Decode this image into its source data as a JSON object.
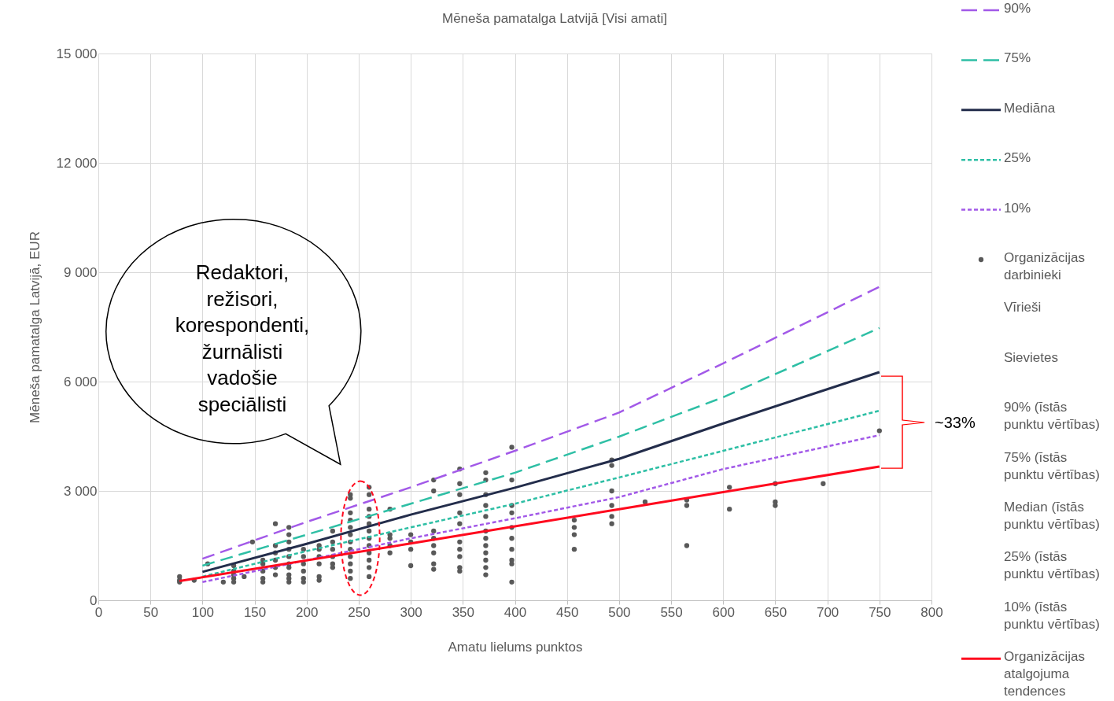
{
  "chart_data": {
    "type": "line",
    "title": "Mēneša pamatalga Latvijā [Visi amati]",
    "xlabel": "Amatu lielums punktos",
    "ylabel": "Mēneša pamatalga Latvijā, EUR",
    "xlim": [
      0,
      800
    ],
    "xticks": [
      0,
      50,
      100,
      150,
      200,
      250,
      300,
      350,
      400,
      450,
      500,
      550,
      600,
      650,
      700,
      750,
      800
    ],
    "ylim": [
      0,
      15000
    ],
    "yticks": [
      0,
      {
        "value": 3000,
        "label": "3 000"
      },
      {
        "value": 6000,
        "label": "6 000"
      },
      {
        "value": 9000,
        "label": "9 000"
      },
      {
        "value": 12000,
        "label": "12 000"
      },
      {
        "value": 15000,
        "label": "15 000"
      }
    ],
    "grid": true,
    "legend": "right",
    "annotations": [
      "Redaktori, režisori, korespondenti, žurnālisti vadošie speciālisti",
      "~33%"
    ],
    "series": [
      {
        "name": "90%",
        "color": "#a259e8",
        "line_style": "dashed",
        "x": [
          100,
          200,
          300,
          400,
          500,
          600,
          750
        ],
        "values": [
          1140,
          2150,
          3100,
          4100,
          5150,
          6500,
          8600
        ]
      },
      {
        "name": "75%",
        "color": "#2ebfa5",
        "line_style": "dashed",
        "x": [
          100,
          200,
          300,
          400,
          500,
          600,
          750
        ],
        "values": [
          950,
          1800,
          2650,
          3500,
          4490,
          5570,
          7470
        ]
      },
      {
        "name": "Mediāna",
        "color": "#232d4b",
        "line_style": "solid",
        "x": [
          100,
          200,
          300,
          400,
          500,
          600,
          750
        ],
        "values": [
          780,
          1550,
          2350,
          3090,
          3880,
          4850,
          6260
        ]
      },
      {
        "name": "25%",
        "color": "#2ebfa5",
        "line_style": "dotted",
        "x": [
          100,
          200,
          300,
          400,
          500,
          600,
          750
        ],
        "values": [
          650,
          1350,
          2000,
          2650,
          3370,
          4100,
          5200
        ]
      },
      {
        "name": "10%",
        "color": "#a259e8",
        "line_style": "dotted",
        "x": [
          100,
          200,
          300,
          400,
          500,
          600,
          750
        ],
        "values": [
          500,
          1100,
          1700,
          2250,
          2830,
          3600,
          4530
        ]
      },
      {
        "name": "Organizācijas darbinieki",
        "type": "scatter",
        "marker": "circle",
        "color": "#595959",
        "x": [
          78,
          78,
          78,
          92,
          105,
          120,
          130,
          130,
          130,
          130,
          130,
          140,
          148,
          158,
          158,
          158,
          158,
          158,
          170,
          170,
          170,
          170,
          170,
          170,
          183,
          183,
          183,
          183,
          183,
          183,
          183,
          183,
          183,
          183,
          197,
          197,
          197,
          197,
          197,
          197,
          212,
          212,
          212,
          212,
          212,
          212,
          225,
          225,
          225,
          225,
          225,
          225,
          242,
          242,
          242,
          242,
          242,
          242,
          242,
          242,
          242,
          242,
          242,
          242,
          260,
          260,
          260,
          260,
          260,
          260,
          260,
          260,
          260,
          260,
          260,
          260,
          280,
          280,
          280,
          280,
          280,
          300,
          300,
          300,
          300,
          322,
          322,
          322,
          322,
          322,
          322,
          322,
          322,
          347,
          347,
          347,
          347,
          347,
          347,
          347,
          347,
          347,
          347,
          372,
          372,
          372,
          372,
          372,
          372,
          372,
          372,
          372,
          372,
          372,
          372,
          397,
          397,
          397,
          397,
          397,
          397,
          397,
          397,
          397,
          397,
          457,
          457,
          457,
          457,
          493,
          493,
          493,
          493,
          493,
          493,
          525,
          565,
          565,
          565,
          606,
          606,
          650,
          650,
          650,
          696,
          750
        ],
        "values": [
          500,
          550,
          650,
          550,
          1000,
          500,
          500,
          600,
          700,
          800,
          950,
          650,
          1600,
          500,
          600,
          800,
          1000,
          1100,
          700,
          900,
          1100,
          1300,
          1500,
          2100,
          500,
          600,
          700,
          900,
          1000,
          1200,
          1400,
          1600,
          1800,
          2000,
          500,
          600,
          800,
          1000,
          1200,
          1400,
          550,
          650,
          1000,
          1200,
          1400,
          1500,
          900,
          1000,
          1200,
          1400,
          1600,
          1900,
          600,
          800,
          1000,
          1200,
          1400,
          1600,
          1800,
          2000,
          2200,
          2400,
          2800,
          2900,
          650,
          900,
          1100,
          1300,
          1500,
          1700,
          1900,
          2100,
          2300,
          2500,
          2900,
          3100,
          1300,
          1500,
          1700,
          1800,
          2500,
          950,
          1400,
          1600,
          1800,
          850,
          1000,
          1300,
          1500,
          1700,
          1900,
          3000,
          3300,
          800,
          900,
          1200,
          1400,
          1600,
          2100,
          2400,
          2900,
          3200,
          3600,
          700,
          900,
          1100,
          1300,
          1500,
          1700,
          1900,
          2300,
          2600,
          2900,
          3300,
          3500,
          500,
          1000,
          1100,
          1400,
          1700,
          2000,
          2400,
          2600,
          3300,
          4200,
          1400,
          1800,
          2000,
          2200,
          2100,
          2300,
          2600,
          3000,
          3700,
          3850,
          2700,
          1500,
          2600,
          2750,
          2500,
          3100,
          2600,
          2700,
          3200,
          3200,
          4650
        ]
      },
      {
        "name": "Vīrieši",
        "type": "scatter"
      },
      {
        "name": "Sievietes",
        "type": "scatter"
      },
      {
        "name": "90% (īstās punktu vērtības)",
        "type": "scatter"
      },
      {
        "name": "75% (īstās punktu vērtības)",
        "type": "scatter"
      },
      {
        "name": "Median (īstās punktu vērtības)",
        "type": "scatter"
      },
      {
        "name": "25% (īstās punktu vērtības)",
        "type": "scatter"
      },
      {
        "name": "10% (īstās punktu vērtības)",
        "type": "scatter"
      },
      {
        "name": "Organizācijas atalgojuma tendences",
        "color": "#ff0a1e",
        "line_style": "solid",
        "x": [
          78,
          300,
          500,
          750
        ],
        "values": [
          530,
          1560,
          2500,
          3670
        ]
      }
    ]
  }
}
